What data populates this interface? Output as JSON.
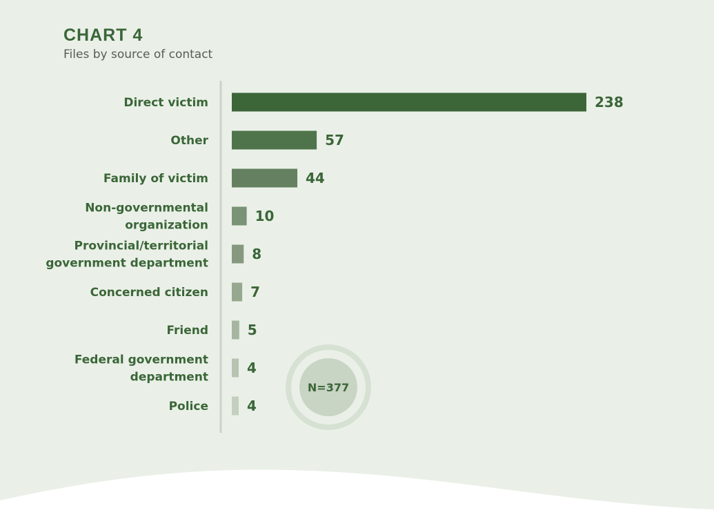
{
  "chart_data": {
    "type": "bar",
    "orientation": "horizontal",
    "title": "CHART 4",
    "subtitle": "Files by source of contact",
    "categories": [
      [
        "Direct victim"
      ],
      [
        "Other"
      ],
      [
        "Family of victim"
      ],
      [
        "Non-governmental",
        "organization"
      ],
      [
        "Provincial/territorial",
        "government department"
      ],
      [
        "Concerned citizen"
      ],
      [
        "Friend"
      ],
      [
        "Federal government",
        "department"
      ],
      [
        "Police"
      ]
    ],
    "values": [
      238,
      57,
      44,
      10,
      8,
      7,
      5,
      4,
      4
    ],
    "total_label": "N=377",
    "xlim": [
      0,
      238
    ],
    "grid": false,
    "colors": {
      "background": "#eaf0e8",
      "text": "#3b6638",
      "bar_shades": [
        "#3d6638",
        "#4f744b",
        "#648060",
        "#7a9276",
        "#86997f",
        "#96a88f",
        "#a6b59f",
        "#b6c3b0",
        "#c4cfbf"
      ],
      "axis_line": "#c9d3c6",
      "circle_ring": "#d6e0d3",
      "circle_fill": "#c8d4c4",
      "wave": "#ffffff"
    }
  }
}
